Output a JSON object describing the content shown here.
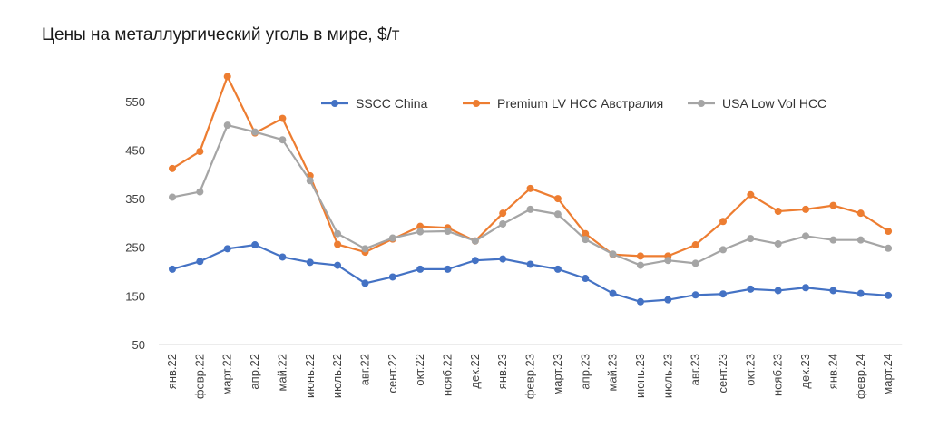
{
  "chart_data": {
    "type": "line",
    "title": "Цены на металлургический уголь в мире, $/т",
    "xlabel": "",
    "ylabel": "",
    "ylim": [
      50,
      600
    ],
    "yticks": [
      50,
      150,
      250,
      350,
      450,
      550
    ],
    "grid": false,
    "legend": "top",
    "categories": [
      "янв.22",
      "февр.22",
      "март.22",
      "апр.22",
      "май.22",
      "июнь.22",
      "июль.22",
      "авг.22",
      "сент.22",
      "окт.22",
      "нояб.22",
      "дек.22",
      "янв.23",
      "февр.23",
      "март.23",
      "апр.23",
      "май.23",
      "июнь.23",
      "июль.23",
      "авг.23",
      "сент.23",
      "окт.23",
      "нояб.23",
      "дек.23",
      "янв.24",
      "февр.24",
      "март.24"
    ],
    "series": [
      {
        "name": "SSCC China",
        "color": "#4472c4",
        "values": [
          205,
          221,
          247,
          255,
          230,
          219,
          213,
          176,
          189,
          205,
          205,
          223,
          226,
          215,
          205,
          186,
          155,
          138,
          142,
          152,
          154,
          164,
          161,
          167,
          161,
          155,
          151
        ]
      },
      {
        "name": "Premium LV HCC Австралия",
        "color": "#ed7d31",
        "values": [
          412,
          447,
          601,
          485,
          515,
          397,
          256,
          240,
          267,
          293,
          290,
          263,
          320,
          371,
          350,
          278,
          235,
          232,
          232,
          255,
          303,
          358,
          324,
          328,
          336,
          320,
          283
        ]
      },
      {
        "name": "USA Low Vol HCC",
        "color": "#a5a5a5",
        "values": [
          353,
          364,
          501,
          487,
          471,
          387,
          278,
          247,
          269,
          282,
          283,
          263,
          298,
          328,
          318,
          266,
          236,
          213,
          223,
          217,
          245,
          268,
          257,
          273,
          265,
          265,
          248
        ]
      }
    ]
  }
}
